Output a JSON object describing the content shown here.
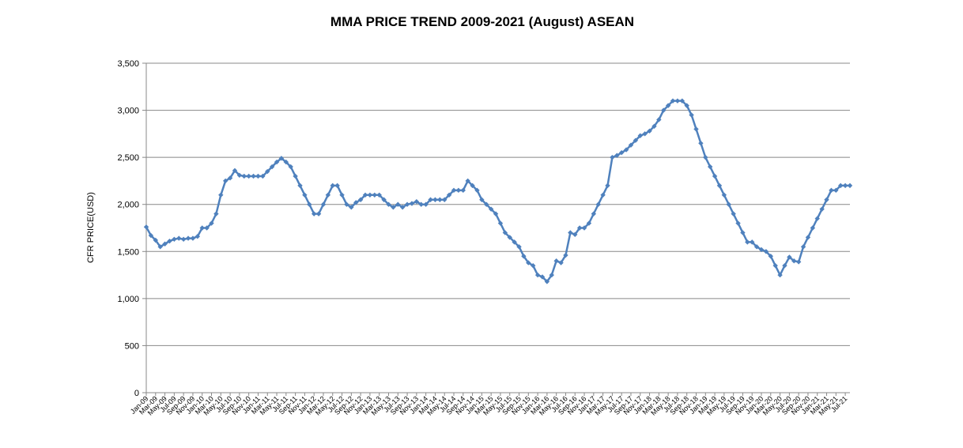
{
  "chart_data": {
    "type": "line",
    "title": "MMA PRICE TREND 2009-2021 (August)  ASEAN",
    "y_label": "CFR PRICE(USD)",
    "categories": [
      "Jan-09",
      null,
      "Mar-09",
      null,
      "May-09",
      null,
      "Jul-09",
      null,
      "Sep-09",
      null,
      "Nov-09",
      null,
      "Jan-10",
      null,
      "Mar-10",
      null,
      "May-10",
      null,
      "Jul-10",
      null,
      "Sep-10",
      null,
      "Nov-10",
      null,
      "Jan-11",
      null,
      "Mar-11",
      null,
      "May-11",
      null,
      "Jul-11",
      null,
      "Sep-11",
      null,
      "Nov-11",
      null,
      "Jan-12",
      null,
      "Mar-12",
      null,
      "May-12",
      null,
      "Jul-12",
      null,
      "Sep-12",
      null,
      "Nov-12",
      null,
      "Jan-13",
      null,
      "Mar-13",
      null,
      "May-13",
      null,
      "Jul-13",
      null,
      "Sep-13",
      null,
      "Nov-13",
      null,
      "Jan-14",
      null,
      "Mar-14",
      null,
      "May-14",
      null,
      "Jul-14",
      null,
      "Sep-14",
      null,
      "Nov-14",
      null,
      "Jan-15",
      null,
      "Mar-15",
      null,
      "May-15",
      null,
      "Jul-15",
      null,
      "Sep-15",
      null,
      "Nov-15",
      null,
      "Jan-16",
      null,
      "Mar-16",
      null,
      "May-16",
      null,
      "Jul-16",
      null,
      "Sep-16",
      null,
      "Nov-16",
      null,
      "Jan-17",
      null,
      "Mar-17",
      null,
      "May-17",
      null,
      "Jul-17",
      null,
      "Sep-17",
      null,
      "Nov-17",
      null,
      "Jan-18",
      null,
      "Mar-18",
      null,
      "May-18",
      null,
      "Jul-18",
      null,
      "Sep-18",
      null,
      "Nov-18",
      null,
      "Jan-19",
      null,
      "Mar-19",
      null,
      "May-19",
      null,
      "Jul-19",
      null,
      "Sep-19",
      null,
      "Nov-19",
      null,
      "Jan-20",
      null,
      "Mar-20",
      null,
      "May-20",
      null,
      "Jul-20",
      null,
      "Sep-20",
      null,
      "Nov-20",
      null,
      "Jan-21",
      null,
      "Mar-21",
      null,
      "May-21",
      null,
      "Jul-21",
      null
    ],
    "series": [
      {
        "name": "MMA",
        "color": "#4f81bd",
        "values": [
          1760,
          1670,
          1620,
          1550,
          1580,
          1610,
          1630,
          1640,
          1630,
          1640,
          1640,
          1660,
          1750,
          1750,
          1800,
          1900,
          2100,
          2250,
          2280,
          2360,
          2310,
          2300,
          2300,
          2300,
          2300,
          2300,
          2350,
          2400,
          2450,
          2490,
          2450,
          2400,
          2300,
          2200,
          2100,
          2000,
          1900,
          1900,
          2000,
          2100,
          2200,
          2200,
          2100,
          2000,
          1970,
          2020,
          2050,
          2100,
          2100,
          2100,
          2100,
          2050,
          2000,
          1970,
          2000,
          1970,
          2000,
          2010,
          2030,
          2000,
          2000,
          2050,
          2050,
          2050,
          2050,
          2100,
          2150,
          2150,
          2150,
          2250,
          2200,
          2150,
          2050,
          2000,
          1950,
          1900,
          1800,
          1700,
          1650,
          1600,
          1550,
          1450,
          1380,
          1350,
          1250,
          1230,
          1180,
          1250,
          1400,
          1380,
          1460,
          1700,
          1680,
          1750,
          1750,
          1800,
          1900,
          2000,
          2100,
          2200,
          2500,
          2520,
          2550,
          2580,
          2630,
          2680,
          2730,
          2750,
          2780,
          2830,
          2900,
          3000,
          3050,
          3100,
          3100,
          3100,
          3050,
          2950,
          2800,
          2650,
          2500,
          2400,
          2300,
          2200,
          2100,
          2000,
          1900,
          1800,
          1700,
          1600,
          1600,
          1550,
          1520,
          1500,
          1450,
          1350,
          1250,
          1350,
          1440,
          1400,
          1390,
          1550,
          1650,
          1750,
          1850,
          1950,
          2050,
          2150,
          2150,
          2200,
          2200,
          2200
        ]
      }
    ],
    "ylim": [
      0,
      3500
    ],
    "yticks": [
      0,
      500,
      {
        "value": 1000,
        "label": "1,000"
      },
      {
        "value": 1500,
        "label": "1,500"
      },
      {
        "value": 2000,
        "label": "2,000"
      },
      {
        "value": 2500,
        "label": "2,500"
      },
      {
        "value": 3000,
        "label": "3,000"
      },
      {
        "value": 3500,
        "label": "3,500"
      }
    ],
    "grid": true
  }
}
